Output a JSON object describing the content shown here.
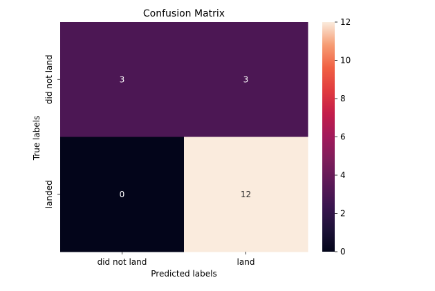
{
  "chart_data": {
    "type": "heatmap",
    "title": "Confusion Matrix",
    "xlabel": "Predicted labels",
    "ylabel": "True labels",
    "x_categories": [
      "did not land",
      "land"
    ],
    "y_categories": [
      "did not land",
      "landed"
    ],
    "values": [
      [
        3,
        3
      ],
      [
        0,
        12
      ]
    ],
    "colorbar": {
      "min": 0,
      "max": 12,
      "ticks": [
        0,
        2,
        4,
        6,
        8,
        10,
        12
      ],
      "colormap": "rocket"
    }
  }
}
